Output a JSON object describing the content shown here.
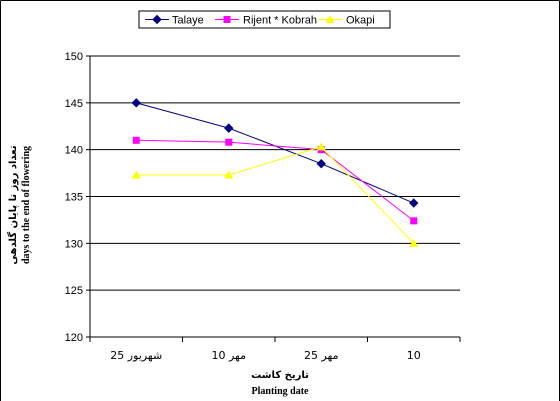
{
  "chart_data": {
    "type": "line",
    "title": "",
    "categories": [
      "شهریور 25",
      "مهر 10",
      "مهر 25",
      "10"
    ],
    "series": [
      {
        "name": "Talaye",
        "values": [
          145.0,
          142.3,
          138.5,
          134.3
        ],
        "color": "#000080",
        "marker": "diamond"
      },
      {
        "name": "Rijent * Kobrah",
        "values": [
          141.0,
          140.8,
          140.0,
          132.4
        ],
        "color": "#ff00ff",
        "marker": "square"
      },
      {
        "name": "Okapi",
        "values": [
          137.3,
          137.3,
          140.3,
          130.0
        ],
        "color": "#ffff00",
        "marker": "triangle"
      }
    ],
    "ylim": [
      120,
      150
    ],
    "yticks": [
      120,
      125,
      130,
      135,
      140,
      145,
      150
    ],
    "ylabel_fa": "تعداد روز تا پایان گلدهی",
    "ylabel_en": "days to the end of flowering",
    "xlabel_fa": "تاریخ کاشت",
    "xlabel_en": "Planting date",
    "grid": true,
    "legend_position": "top"
  }
}
